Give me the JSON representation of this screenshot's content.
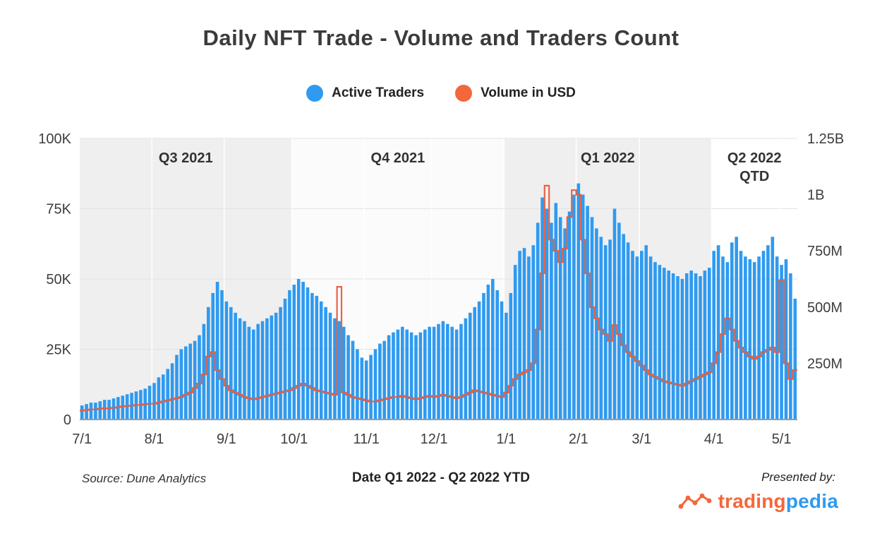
{
  "footer": {
    "source": "Source: Dune Analytics",
    "presented_by": "Presented by:",
    "logo": {
      "trading": "trading",
      "pedia": "pedia",
      "trading_color": "#f4673a",
      "pedia_color": "#2f9af0"
    }
  },
  "chart_data": {
    "type": "combo-bar-line",
    "title": "Daily NFT Trade - Volume and Traders Count",
    "xlabel": "Date Q1 2022 - Q2 2022 YTD",
    "grid": true,
    "legend_position": "top-center",
    "legend": [
      {
        "label": "Active Traders",
        "color": "#2f9af0"
      },
      {
        "label": "Volume in USD",
        "color": "#f4673a"
      }
    ],
    "x_ticks": [
      {
        "label": "7/1",
        "index": 0
      },
      {
        "label": "8/1",
        "index": 16
      },
      {
        "label": "9/1",
        "index": 32
      },
      {
        "label": "10/1",
        "index": 47
      },
      {
        "label": "11/1",
        "index": 63
      },
      {
        "label": "12/1",
        "index": 78
      },
      {
        "label": "1/1",
        "index": 94
      },
      {
        "label": "2/1",
        "index": 110
      },
      {
        "label": "3/1",
        "index": 124
      },
      {
        "label": "4/1",
        "index": 140
      },
      {
        "label": "5/1",
        "index": 155
      }
    ],
    "quarter_bands": [
      {
        "label": "Q3 2021",
        "start": 0,
        "end": 47,
        "color": "#efefef"
      },
      {
        "label": "Q4 2021",
        "start": 47,
        "end": 94,
        "color": "#fbfbfb"
      },
      {
        "label": "Q1 2022",
        "start": 94,
        "end": 140,
        "color": "#efefef"
      },
      {
        "label": "Q2 2022",
        "label2": "QTD",
        "start": 140,
        "end": 159,
        "color": "#ffffff"
      }
    ],
    "left_axis": {
      "unit": "traders",
      "max": 100000,
      "ticks": [
        {
          "label": "100K",
          "value": 100000
        },
        {
          "label": "75K",
          "value": 75000
        },
        {
          "label": "50K",
          "value": 50000
        },
        {
          "label": "25K",
          "value": 25000
        },
        {
          "label": "0",
          "value": 0
        }
      ]
    },
    "right_axis": {
      "unit": "USD (millions)",
      "max": 1250,
      "ticks": [
        {
          "label": "1.25B",
          "value": 1250
        },
        {
          "label": "1B",
          "value": 1000
        },
        {
          "label": "750M",
          "value": 750
        },
        {
          "label": "500M",
          "value": 500
        },
        {
          "label": "250M",
          "value": 250
        }
      ]
    },
    "series": [
      {
        "name": "Active Traders",
        "type": "bar",
        "axis": "left",
        "color": "#2f9af0",
        "values": [
          5000,
          5500,
          6000,
          6000,
          6500,
          7000,
          7000,
          7500,
          8000,
          8500,
          9000,
          9500,
          10000,
          10500,
          11000,
          12000,
          13000,
          15000,
          16000,
          18000,
          20000,
          23000,
          25000,
          26000,
          27000,
          28000,
          30000,
          34000,
          40000,
          45000,
          49000,
          46000,
          42000,
          40000,
          38000,
          36000,
          35000,
          33000,
          32000,
          34000,
          35000,
          36000,
          37000,
          38000,
          40000,
          43000,
          46000,
          48000,
          50000,
          49000,
          47000,
          45000,
          44000,
          42000,
          40000,
          38000,
          36000,
          35000,
          33000,
          30000,
          28000,
          25000,
          22000,
          21000,
          23000,
          25000,
          27000,
          28000,
          30000,
          31000,
          32000,
          33000,
          32000,
          31000,
          30000,
          31000,
          32000,
          33000,
          33000,
          34000,
          35000,
          34000,
          33000,
          32000,
          34000,
          36000,
          38000,
          40000,
          42000,
          45000,
          48000,
          50000,
          46000,
          42000,
          38000,
          45000,
          55000,
          60000,
          61000,
          58000,
          62000,
          70000,
          79000,
          75000,
          70000,
          77000,
          72000,
          68000,
          74000,
          80000,
          84000,
          80000,
          76000,
          72000,
          68000,
          65000,
          62000,
          64000,
          75000,
          70000,
          66000,
          63000,
          60000,
          58000,
          60000,
          62000,
          58000,
          56000,
          55000,
          54000,
          53000,
          52000,
          51000,
          50000,
          52000,
          53000,
          52000,
          51000,
          53000,
          54000,
          60000,
          62000,
          58000,
          56000,
          63000,
          65000,
          60000,
          58000,
          57000,
          56000,
          58000,
          60000,
          62000,
          65000,
          58000,
          55000,
          57000,
          52000,
          43000
        ]
      },
      {
        "name": "Volume in USD",
        "type": "line",
        "axis": "right",
        "color": "#e55c3c",
        "values": [
          40,
          42,
          45,
          45,
          48,
          50,
          50,
          52,
          55,
          58,
          60,
          62,
          65,
          65,
          68,
          70,
          70,
          75,
          80,
          85,
          90,
          95,
          100,
          110,
          120,
          140,
          160,
          200,
          280,
          300,
          220,
          180,
          150,
          130,
          120,
          110,
          100,
          95,
          90,
          95,
          100,
          105,
          110,
          115,
          120,
          125,
          130,
          140,
          150,
          160,
          150,
          140,
          130,
          125,
          120,
          115,
          110,
          590,
          120,
          110,
          100,
          95,
          90,
          85,
          80,
          80,
          85,
          90,
          95,
          100,
          100,
          105,
          100,
          95,
          90,
          95,
          100,
          105,
          100,
          105,
          110,
          105,
          100,
          95,
          100,
          110,
          120,
          130,
          125,
          120,
          115,
          110,
          105,
          100,
          120,
          150,
          180,
          200,
          210,
          220,
          250,
          400,
          650,
          1040,
          800,
          750,
          700,
          760,
          900,
          1020,
          1000,
          800,
          650,
          500,
          450,
          400,
          380,
          350,
          420,
          380,
          330,
          300,
          280,
          260,
          240,
          220,
          200,
          190,
          180,
          170,
          165,
          160,
          155,
          150,
          160,
          170,
          180,
          190,
          200,
          210,
          250,
          300,
          380,
          450,
          400,
          350,
          320,
          300,
          280,
          270,
          280,
          300,
          310,
          320,
          300,
          620,
          250,
          180,
          220
        ]
      }
    ]
  }
}
